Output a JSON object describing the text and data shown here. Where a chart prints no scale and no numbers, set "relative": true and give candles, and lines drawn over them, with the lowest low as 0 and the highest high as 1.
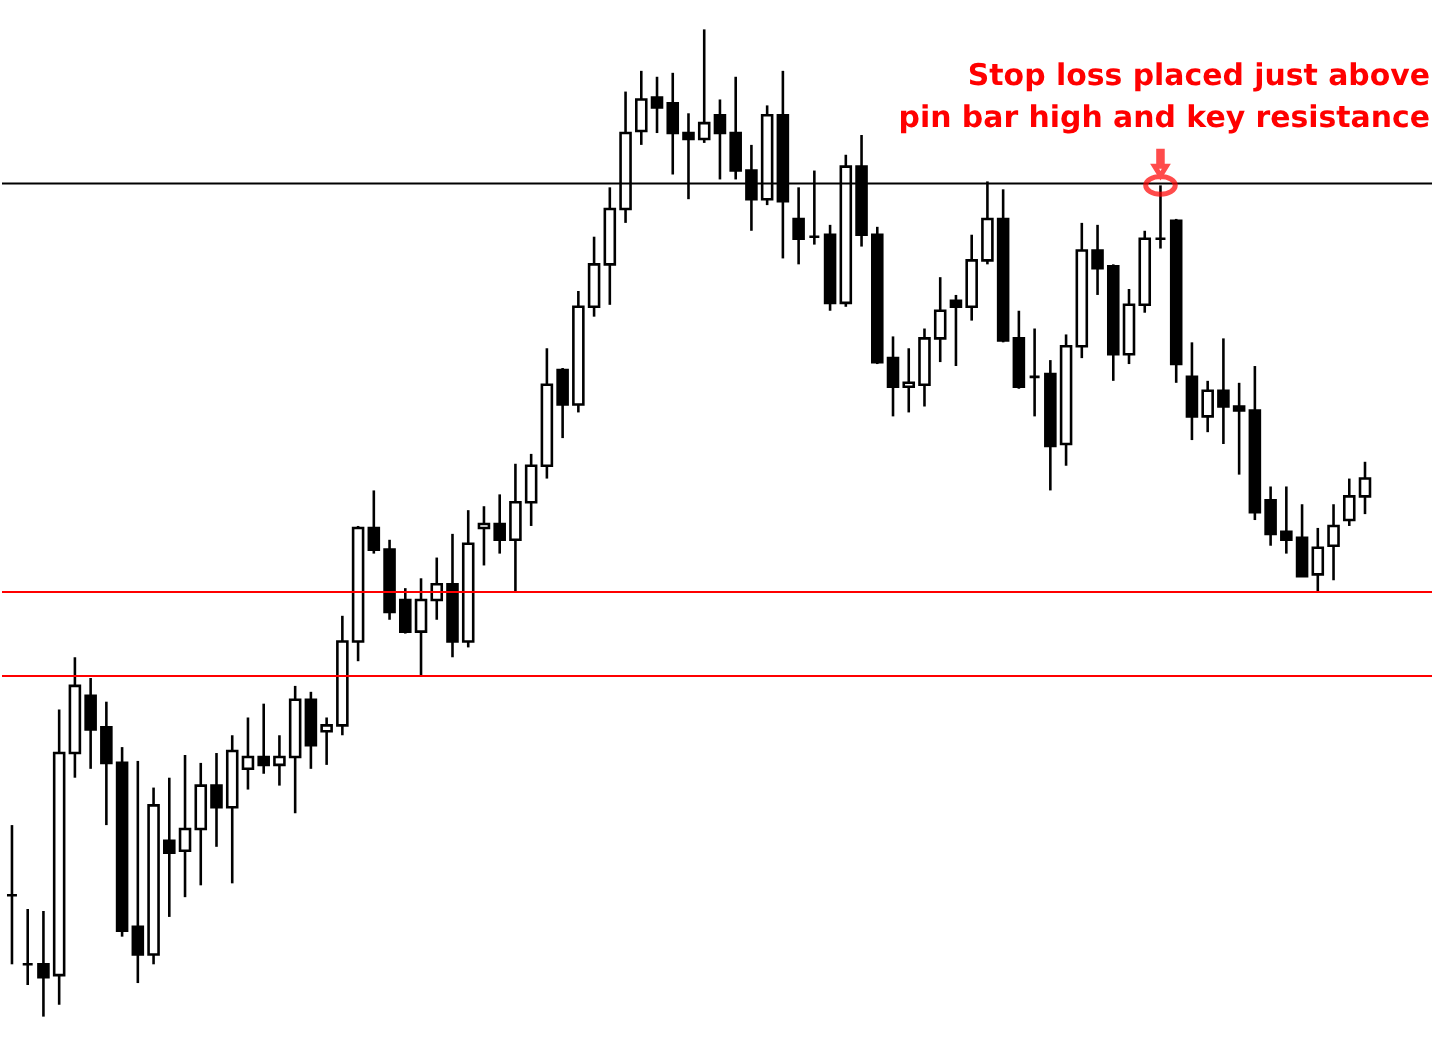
{
  "chart_data": {
    "type": "candlestick",
    "relative": true,
    "categories": [
      null,
      null,
      null,
      null,
      null,
      null,
      null,
      null,
      null,
      null,
      null,
      null,
      null,
      null,
      null,
      null,
      null,
      null,
      null,
      null,
      null,
      null,
      null,
      null,
      null,
      null,
      null,
      null,
      null,
      null,
      null,
      null,
      null,
      null,
      null,
      null,
      null,
      null,
      null,
      null,
      null,
      null,
      null,
      null,
      null,
      null,
      null,
      null,
      null,
      null,
      null,
      null,
      null,
      null,
      null,
      null,
      null,
      null,
      null,
      null,
      null,
      null,
      null,
      null,
      null,
      null,
      null,
      null,
      null,
      null,
      null,
      null,
      null,
      null,
      null,
      null,
      null,
      null,
      null,
      null,
      null,
      null,
      null,
      null,
      null,
      null,
      null
    ],
    "ohlc": [
      [
        0.123,
        0.194,
        0.053,
        0.123
      ],
      [
        0.053,
        0.109,
        0.032,
        0.053
      ],
      [
        0.053,
        0.107,
        0.0,
        0.04
      ],
      [
        0.042,
        0.311,
        0.012,
        0.267
      ],
      [
        0.267,
        0.364,
        0.242,
        0.335
      ],
      [
        0.325,
        0.343,
        0.251,
        0.291
      ],
      [
        0.293,
        0.319,
        0.194,
        0.257
      ],
      [
        0.257,
        0.273,
        0.081,
        0.087
      ],
      [
        0.091,
        0.259,
        0.034,
        0.063
      ],
      [
        0.063,
        0.232,
        0.053,
        0.214
      ],
      [
        0.178,
        0.242,
        0.101,
        0.166
      ],
      [
        0.168,
        0.265,
        0.121,
        0.19
      ],
      [
        0.19,
        0.257,
        0.133,
        0.234
      ],
      [
        0.234,
        0.267,
        0.172,
        0.212
      ],
      [
        0.212,
        0.285,
        0.135,
        0.269
      ],
      [
        0.251,
        0.303,
        0.23,
        0.263
      ],
      [
        0.263,
        0.317,
        0.246,
        0.255
      ],
      [
        0.255,
        0.285,
        0.234,
        0.263
      ],
      [
        0.263,
        0.335,
        0.206,
        0.321
      ],
      [
        0.321,
        0.329,
        0.251,
        0.275
      ],
      [
        0.289,
        0.303,
        0.255,
        0.295
      ],
      [
        0.295,
        0.406,
        0.285,
        0.38
      ],
      [
        0.38,
        0.497,
        0.36,
        0.495
      ],
      [
        0.495,
        0.533,
        0.469,
        0.473
      ],
      [
        0.473,
        0.483,
        0.402,
        0.41
      ],
      [
        0.422,
        0.434,
        0.388,
        0.39
      ],
      [
        0.39,
        0.444,
        0.345,
        0.422
      ],
      [
        0.422,
        0.465,
        0.402,
        0.438
      ],
      [
        0.438,
        0.489,
        0.364,
        0.38
      ],
      [
        0.38,
        0.513,
        0.374,
        0.479
      ],
      [
        0.495,
        0.517,
        0.457,
        0.499
      ],
      [
        0.499,
        0.529,
        0.469,
        0.483
      ],
      [
        0.483,
        0.56,
        0.43,
        0.521
      ],
      [
        0.521,
        0.57,
        0.497,
        0.558
      ],
      [
        0.558,
        0.677,
        0.545,
        0.64
      ],
      [
        0.655,
        0.657,
        0.586,
        0.62
      ],
      [
        0.62,
        0.735,
        0.612,
        0.719
      ],
      [
        0.719,
        0.79,
        0.709,
        0.762
      ],
      [
        0.762,
        0.84,
        0.721,
        0.818
      ],
      [
        0.818,
        0.937,
        0.804,
        0.895
      ],
      [
        0.897,
        0.958,
        0.883,
        0.929
      ],
      [
        0.931,
        0.952,
        0.895,
        0.921
      ],
      [
        0.925,
        0.956,
        0.853,
        0.895
      ],
      [
        0.895,
        0.915,
        0.828,
        0.889
      ],
      [
        0.889,
        1.0,
        0.885,
        0.905
      ],
      [
        0.913,
        0.929,
        0.848,
        0.895
      ],
      [
        0.895,
        0.952,
        0.848,
        0.857
      ],
      [
        0.857,
        0.883,
        0.796,
        0.828
      ],
      [
        0.828,
        0.923,
        0.822,
        0.913
      ],
      [
        0.913,
        0.958,
        0.768,
        0.826
      ],
      [
        0.808,
        0.84,
        0.762,
        0.788
      ],
      [
        0.79,
        0.857,
        0.782,
        0.79
      ],
      [
        0.792,
        0.802,
        0.715,
        0.723
      ],
      [
        0.723,
        0.873,
        0.719,
        0.861
      ],
      [
        0.861,
        0.893,
        0.78,
        0.792
      ],
      [
        0.792,
        0.8,
        0.661,
        0.663
      ],
      [
        0.667,
        0.689,
        0.608,
        0.638
      ],
      [
        0.638,
        0.677,
        0.612,
        0.642
      ],
      [
        0.64,
        0.697,
        0.618,
        0.687
      ],
      [
        0.687,
        0.749,
        0.663,
        0.715
      ],
      [
        0.725,
        0.731,
        0.659,
        0.719
      ],
      [
        0.719,
        0.792,
        0.705,
        0.766
      ],
      [
        0.766,
        0.846,
        0.762,
        0.808
      ],
      [
        0.808,
        0.838,
        0.683,
        0.685
      ],
      [
        0.687,
        0.715,
        0.636,
        0.638
      ],
      [
        0.648,
        0.697,
        0.608,
        0.648
      ],
      [
        0.651,
        0.665,
        0.533,
        0.578
      ],
      [
        0.58,
        0.691,
        0.558,
        0.679
      ],
      [
        0.679,
        0.804,
        0.667,
        0.776
      ],
      [
        0.776,
        0.802,
        0.731,
        0.758
      ],
      [
        0.76,
        0.762,
        0.644,
        0.671
      ],
      [
        0.671,
        0.737,
        0.661,
        0.721
      ],
      [
        0.721,
        0.796,
        0.713,
        0.788
      ],
      [
        0.788,
        0.842,
        0.778,
        0.788
      ],
      [
        0.806,
        0.808,
        0.642,
        0.661
      ],
      [
        0.648,
        0.683,
        0.584,
        0.608
      ],
      [
        0.608,
        0.644,
        0.592,
        0.634
      ],
      [
        0.634,
        0.687,
        0.58,
        0.618
      ],
      [
        0.618,
        0.642,
        0.549,
        0.614
      ],
      [
        0.614,
        0.659,
        0.503,
        0.511
      ],
      [
        0.523,
        0.537,
        0.477,
        0.489
      ],
      [
        0.491,
        0.537,
        0.469,
        0.483
      ],
      [
        0.485,
        0.519,
        0.446,
        0.446
      ],
      [
        0.448,
        0.495,
        0.43,
        0.475
      ],
      [
        0.477,
        0.519,
        0.442,
        0.497
      ],
      [
        0.503,
        0.545,
        0.497,
        0.527
      ],
      [
        0.527,
        0.562,
        0.509,
        0.545
      ]
    ],
    "ref_lines": [
      {
        "axis": "y",
        "value": 0.844,
        "color": "#000000"
      },
      {
        "axis": "y",
        "value": 0.43,
        "color": "#ff0000"
      },
      {
        "axis": "y",
        "value": 0.345,
        "color": "#ff0000"
      }
    ],
    "annotations": [
      {
        "text": "Stop loss placed just above pin bar high and key resistance",
        "y": 0.842
      }
    ]
  }
}
